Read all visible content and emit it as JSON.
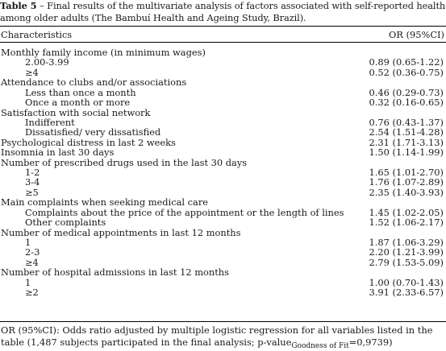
{
  "caption": {
    "label": "Table 5",
    "text": " – Final results of the multivariate analysis of factors associated with self-reported health among older adults (The Bambuí Health and Ageing Study, Brazil)."
  },
  "header": {
    "characteristics": "Characteristics",
    "or": "OR (95%CI)"
  },
  "rows": [
    {
      "type": "group",
      "label": "Monthly family income (in minimum wages)",
      "or": ""
    },
    {
      "type": "sub",
      "label": "2.00-3.99",
      "or": "0.89 (0.65-1.22)"
    },
    {
      "type": "sub",
      "label": "≥4",
      "or": "0.52 (0.36-0.75)"
    },
    {
      "type": "group",
      "label": "Attendance to clubs and/or associations",
      "or": ""
    },
    {
      "type": "sub",
      "label": "Less than once a month",
      "or": "0.46 (0.29-0.73)"
    },
    {
      "type": "sub",
      "label": "Once a month or more",
      "or": "0.32 (0.16-0.65)"
    },
    {
      "type": "group",
      "label": "Satisfaction with social network",
      "or": ""
    },
    {
      "type": "sub",
      "label": "Indifferent",
      "or": "0.76 (0.43-1.37)"
    },
    {
      "type": "sub",
      "label": "Dissatisfied/ very dissatisfied",
      "or": "2.54 (1.51-4.28)"
    },
    {
      "type": "group",
      "label": "Psychological distress in last 2 weeks",
      "or": "2.31 (1.71-3.13)"
    },
    {
      "type": "group",
      "label": "Insomnia in last 30 days",
      "or": "1.50 (1.14-1.99)"
    },
    {
      "type": "group",
      "label": "Number of prescribed drugs used in the last 30 days",
      "or": ""
    },
    {
      "type": "sub",
      "label": "1-2",
      "or": "1.65 (1.01-2.70)"
    },
    {
      "type": "sub",
      "label": "3-4",
      "or": "1.76 (1.07-2.89)"
    },
    {
      "type": "sub",
      "label": "≥5",
      "or": "2.35 (1.40-3.93)"
    },
    {
      "type": "group",
      "label": "Main complaints when seeking medical care",
      "or": ""
    },
    {
      "type": "sub",
      "label": "Complaints about the price of the appointment or the length of lines",
      "or": "1.45 (1.02-2.05)"
    },
    {
      "type": "sub",
      "label": "Other complaints",
      "or": "1.52 (1.06-2.17)"
    },
    {
      "type": "group",
      "label": "Number of medical appointments in last 12 months",
      "or": ""
    },
    {
      "type": "sub",
      "label": "1",
      "or": "1.87 (1.06-3.29)"
    },
    {
      "type": "sub",
      "label": "2-3",
      "or": "2.20 (1.21-3.99)"
    },
    {
      "type": "sub",
      "label": "≥4",
      "or": "2.79 (1.53-5.09)"
    },
    {
      "type": "group",
      "label": "Number of hospital admissions in last 12 months",
      "or": ""
    },
    {
      "type": "sub",
      "label": "1",
      "or": "1.00 (0.70-1.43)"
    },
    {
      "type": "sub",
      "label": "≥2",
      "or": "3.91 (2.33-6.57)"
    }
  ],
  "footnote": {
    "text_before": "OR (95%CI): Odds ratio adjusted by multiple logistic regression for all variables listed in the table (1,487 subjects participated in the final analysis; p-value",
    "subscript": "Goodness of Fit",
    "text_after": "=0,9739)"
  }
}
